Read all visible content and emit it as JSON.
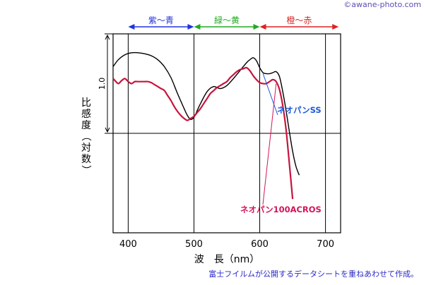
{
  "watermark": "©awane-photo.com",
  "source_note": "富士フイルムが公開するデータシートを重ねあわせて作成。",
  "chart_data": {
    "type": "line",
    "xlabel": "波　長（nm）",
    "ylabel": "比感度（対数）",
    "xlim": [
      377,
      723
    ],
    "ylim": [
      -1.0,
      1.0
    ],
    "x_ticks": [
      400,
      500,
      600,
      700
    ],
    "x_tick_labels": [
      "400",
      "500",
      "600",
      "700"
    ],
    "y_tick_values": [
      0,
      1.0
    ],
    "y_tick_label": "1.0",
    "grid": true,
    "color_bands": [
      {
        "label": "紫〜青",
        "from": 400,
        "to": 500,
        "color": "#2233dd"
      },
      {
        "label": "緑〜黄",
        "from": 500,
        "to": 600,
        "color": "#22aa22"
      },
      {
        "label": "橙〜赤",
        "from": 600,
        "to": 720,
        "color": "#dd2222"
      }
    ],
    "series": [
      {
        "name": "ネオパンSS",
        "color": "#000000",
        "x": [
          377,
          385,
          395,
          405,
          415,
          425,
          435,
          445,
          455,
          465,
          475,
          485,
          490,
          495,
          500,
          505,
          510,
          520,
          530,
          540,
          550,
          560,
          570,
          580,
          585,
          590,
          595,
          600,
          605,
          610,
          615,
          620,
          625,
          630,
          635,
          640,
          645,
          650,
          655,
          660
        ],
        "y": [
          0.67,
          0.74,
          0.79,
          0.81,
          0.81,
          0.8,
          0.78,
          0.74,
          0.67,
          0.56,
          0.4,
          0.25,
          0.18,
          0.14,
          0.16,
          0.23,
          0.3,
          0.42,
          0.47,
          0.45,
          0.48,
          0.55,
          0.63,
          0.71,
          0.74,
          0.76,
          0.73,
          0.66,
          0.61,
          0.6,
          0.6,
          0.61,
          0.62,
          0.57,
          0.42,
          0.23,
          0.02,
          -0.18,
          -0.33,
          -0.42
        ]
      },
      {
        "name": "ネオパン100ACROS",
        "color": "#c8143c",
        "x": [
          377,
          380,
          385,
          390,
          395,
          400,
          405,
          410,
          415,
          420,
          425,
          430,
          435,
          440,
          445,
          450,
          455,
          460,
          465,
          470,
          475,
          480,
          485,
          490,
          495,
          500,
          505,
          510,
          515,
          520,
          525,
          530,
          535,
          540,
          545,
          550,
          555,
          560,
          565,
          570,
          575,
          580,
          585,
          590,
          595,
          600,
          605,
          610,
          615,
          620,
          625,
          630,
          635,
          640,
          645,
          650
        ],
        "y": [
          0.55,
          0.53,
          0.5,
          0.53,
          0.55,
          0.52,
          0.5,
          0.52,
          0.52,
          0.52,
          0.52,
          0.52,
          0.51,
          0.49,
          0.47,
          0.45,
          0.43,
          0.38,
          0.33,
          0.27,
          0.22,
          0.18,
          0.15,
          0.13,
          0.15,
          0.17,
          0.21,
          0.25,
          0.3,
          0.35,
          0.4,
          0.43,
          0.46,
          0.48,
          0.5,
          0.52,
          0.56,
          0.59,
          0.62,
          0.64,
          0.65,
          0.66,
          0.63,
          0.58,
          0.54,
          0.51,
          0.5,
          0.5,
          0.52,
          0.54,
          0.52,
          0.44,
          0.28,
          0.04,
          -0.3,
          -0.66
        ]
      }
    ]
  }
}
